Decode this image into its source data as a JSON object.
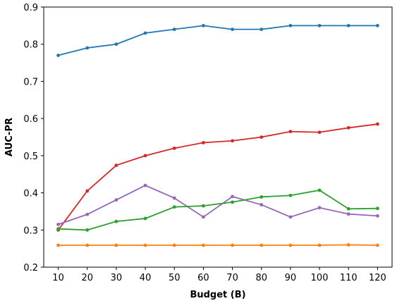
{
  "chart_data": {
    "type": "line",
    "title": "",
    "xlabel": "Budget (B)",
    "ylabel": "AUC-PR",
    "x": [
      10,
      20,
      30,
      40,
      50,
      60,
      70,
      80,
      90,
      100,
      110,
      120
    ],
    "xticks": [
      "10",
      "20",
      "30",
      "40",
      "50",
      "60",
      "70",
      "80",
      "90",
      "100",
      "110",
      "120"
    ],
    "yticks": [
      "0.2",
      "0.3",
      "0.4",
      "0.5",
      "0.6",
      "0.7",
      "0.8",
      "0.9"
    ],
    "ylim": [
      0.2,
      0.9
    ],
    "xlim": [
      5,
      125
    ],
    "grid": false,
    "legend": "none",
    "series": [
      {
        "color": "#1f77b4",
        "values": [
          0.77,
          0.79,
          0.8,
          0.83,
          0.84,
          0.85,
          0.84,
          0.84,
          0.85,
          0.85,
          0.85,
          0.85
        ]
      },
      {
        "color": "#d62728",
        "values": [
          0.3,
          0.405,
          0.474,
          0.5,
          0.52,
          0.535,
          0.54,
          0.55,
          0.565,
          0.563,
          0.575,
          0.585
        ]
      },
      {
        "color": "#9467bd",
        "values": [
          0.315,
          0.342,
          0.381,
          0.42,
          0.386,
          0.335,
          0.39,
          0.368,
          0.335,
          0.36,
          0.343,
          0.338
        ]
      },
      {
        "color": "#2ca02c",
        "values": [
          0.303,
          0.3,
          0.323,
          0.331,
          0.362,
          0.365,
          0.375,
          0.389,
          0.393,
          0.407,
          0.357,
          0.358
        ]
      },
      {
        "color": "#ff7f0e",
        "values": [
          0.259,
          0.259,
          0.259,
          0.259,
          0.259,
          0.259,
          0.259,
          0.259,
          0.259,
          0.259,
          0.26,
          0.259
        ]
      }
    ]
  }
}
